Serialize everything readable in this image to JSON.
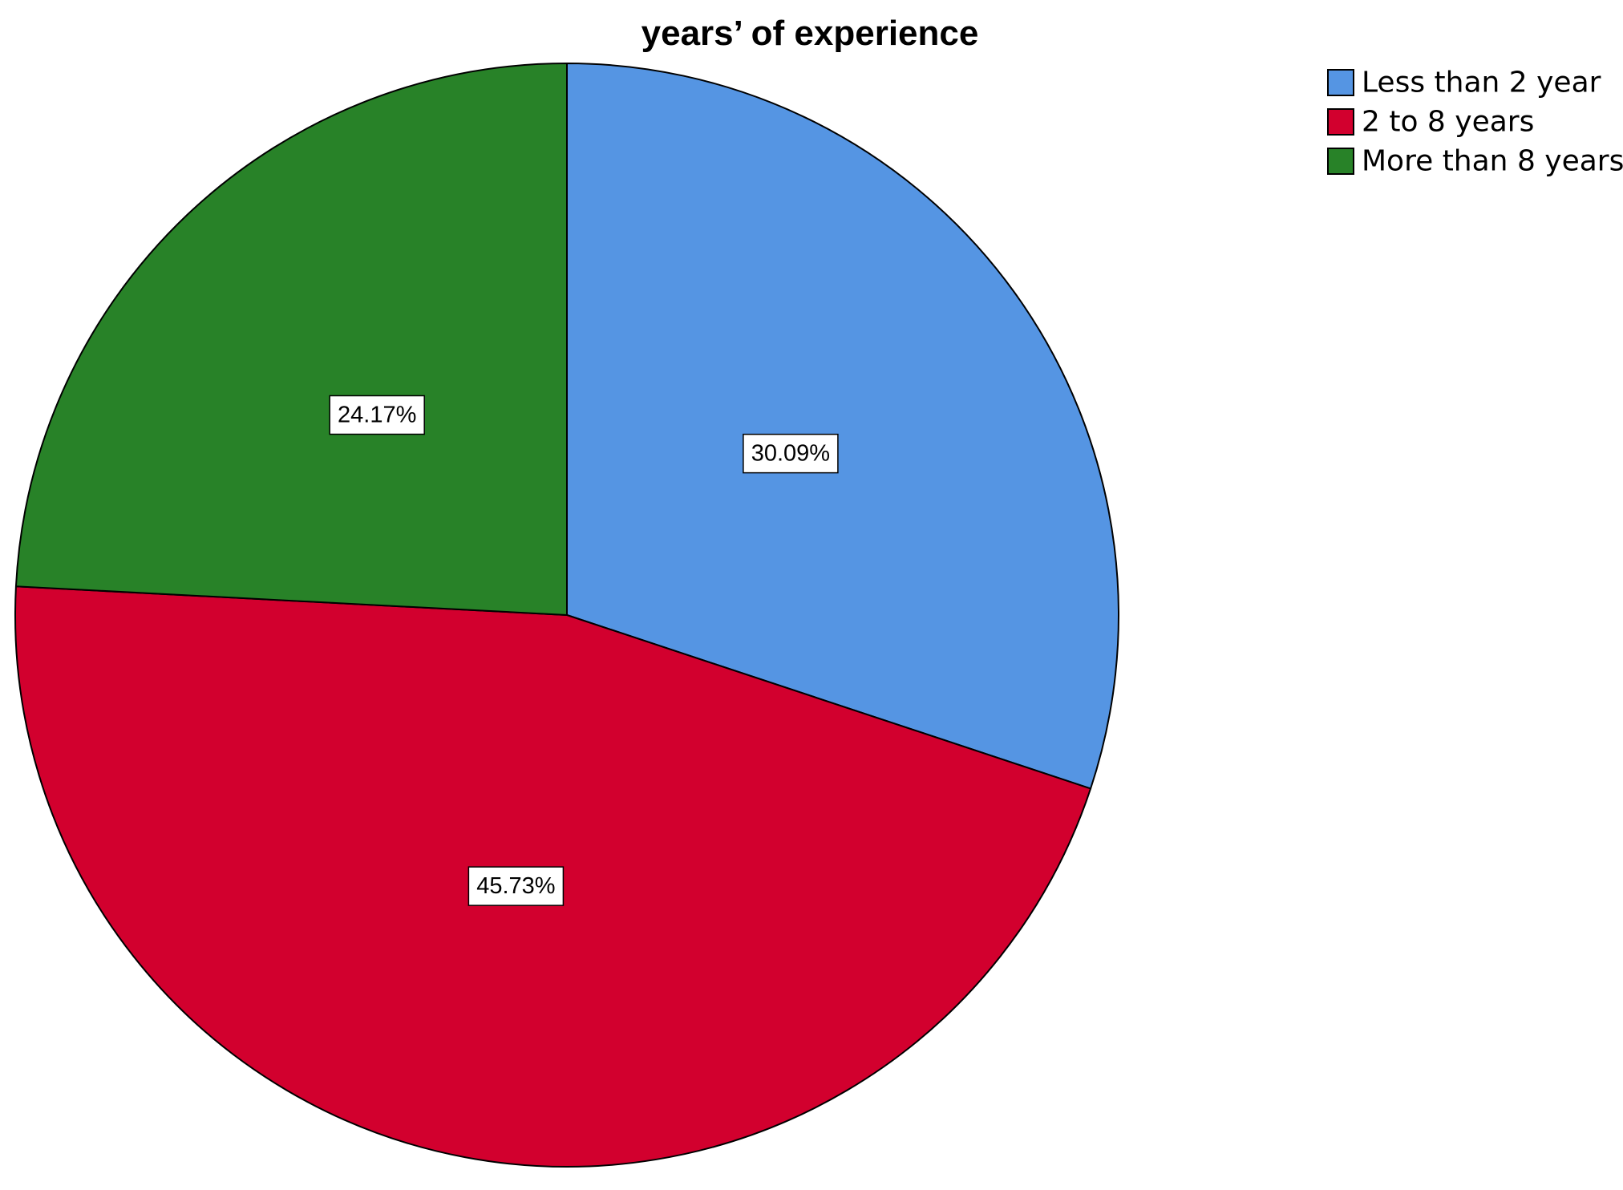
{
  "chart_data": {
    "type": "pie",
    "title": "years’ of experience",
    "categories": [
      "Less than 2 year",
      "2 to 8 years",
      "More than 8 years"
    ],
    "values": [
      30.09,
      45.73,
      24.17
    ],
    "data_labels": [
      "30.09%",
      "45.73%",
      "24.17%"
    ],
    "colors": [
      "#5595e3",
      "#d2002e",
      "#288228"
    ],
    "start_angle": "12 o'clock",
    "direction": "clockwise",
    "legend_position": "top-right"
  }
}
